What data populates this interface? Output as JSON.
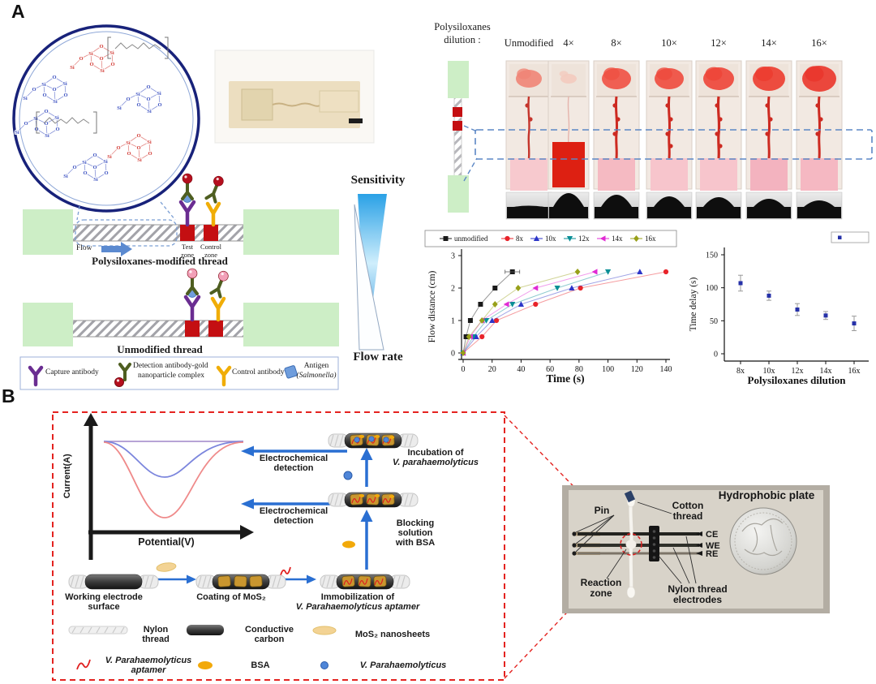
{
  "panel_a": {
    "label": "A",
    "molecule_atoms": {
      "si": "Si",
      "o": "O"
    },
    "flow_label": "Flow",
    "test_zone": [
      "Test",
      "zone"
    ],
    "control_zone": [
      "Control",
      "zone"
    ],
    "modified_thread_title": "Polysiloxanes-modified thread",
    "unmodified_thread_title": "Unmodified thread",
    "sensitivity_label": "Sensitivity",
    "flow_rate_label": "Flow rate",
    "antibody_legend": [
      {
        "icon": "capture-antibody-icon",
        "lines": [
          "Capture antibody"
        ]
      },
      {
        "icon": "detection-antibody-gold-icon",
        "lines": [
          "Detection antibody-gold",
          "nanoparticle complex"
        ]
      },
      {
        "icon": "control-antibody-icon",
        "lines": [
          "Control antibody"
        ]
      },
      {
        "icon": "antigen-icon",
        "lines": [
          "Antigen",
          "(Salmonella)"
        ]
      }
    ],
    "dilution_header": [
      "Polysiloxanes",
      "dilution :"
    ],
    "dilution_columns": [
      "Unmodified",
      "4×",
      "8×",
      "10×",
      "12×",
      "14×",
      "16×"
    ]
  },
  "chart_data": [
    {
      "type": "line",
      "title": "",
      "xlabel": "Time (s)",
      "ylabel": "Flow distance (cm)",
      "xlim": [
        0,
        140
      ],
      "ylim": [
        0,
        3
      ],
      "xticks": [
        0,
        20,
        40,
        60,
        80,
        100,
        120,
        140
      ],
      "yticks": [
        0,
        1,
        2,
        3
      ],
      "grid": false,
      "legend_position": "top",
      "y_common": [
        0,
        0.5,
        1.0,
        1.5,
        2.0,
        2.5
      ],
      "series": [
        {
          "name": "unmodified",
          "marker": "square",
          "color": "#1a1a1a",
          "x": [
            0,
            2,
            5,
            12,
            22,
            34
          ]
        },
        {
          "name": "8x",
          "marker": "circle",
          "color": "#e8232a",
          "x": [
            0,
            13,
            23,
            50,
            81,
            140
          ]
        },
        {
          "name": "10x",
          "marker": "triangle-up",
          "color": "#2c35c8",
          "x": [
            0,
            9,
            20,
            40,
            75,
            122
          ]
        },
        {
          "name": "12x",
          "marker": "triangle-down",
          "color": "#0a8f96",
          "x": [
            0,
            7,
            16,
            34,
            65,
            100
          ]
        },
        {
          "name": "14x",
          "marker": "triangle-left",
          "color": "#e12ad4",
          "x": [
            0,
            5,
            13,
            30,
            50,
            91
          ]
        },
        {
          "name": "16x",
          "marker": "diamond",
          "color": "#98a019",
          "x": [
            0,
            4,
            13,
            22,
            38,
            79
          ]
        }
      ]
    },
    {
      "type": "scatter",
      "title": "",
      "xlabel": "Polysiloxanes dilution",
      "ylabel": "Time delay (s)",
      "categories": [
        "8x",
        "10x",
        "12x",
        "14x",
        "16x"
      ],
      "values": [
        107,
        88,
        67,
        58,
        46
      ],
      "errors": [
        12,
        7,
        9,
        6,
        11
      ],
      "ylim": [
        0,
        150
      ],
      "yticks": [
        0,
        50,
        100,
        150
      ],
      "grid": false,
      "marker_color": "#2631a8"
    }
  ],
  "panel_b": {
    "label": "B",
    "cv_plot": {
      "ylabel": "Current(A)",
      "xlabel": "Potential(V)"
    },
    "detection_arrow_top": [
      "Electrochemical",
      "detection"
    ],
    "detection_arrow_bottom": [
      "Electrochemical",
      "detection"
    ],
    "incubation_step": [
      "Incubation of",
      "V. parahaemolyticus"
    ],
    "blocking_step": [
      "Blocking",
      "solution",
      "with BSA"
    ],
    "working_electrode_step": [
      "Working electrode",
      "surface"
    ],
    "coating_step": [
      "Coating of MoS₂"
    ],
    "immobilization_step": [
      "Immobilization of",
      "V. Parahaemolyticus aptamer"
    ],
    "component_legend": [
      {
        "icon": "nylon-thread-icon",
        "lines": [
          "Nylon",
          "thread"
        ]
      },
      {
        "icon": "conductive-carbon-icon",
        "lines": [
          "Conductive",
          "carbon"
        ]
      },
      {
        "icon": "mos2-nanosheets-icon",
        "lines": [
          "MoS₂ nanosheets"
        ]
      },
      {
        "icon": "aptamer-icon",
        "lines": [
          "V. Parahaemolyticus",
          "aptamer"
        ]
      },
      {
        "icon": "bsa-icon",
        "lines": [
          "BSA"
        ]
      },
      {
        "icon": "bacteria-icon",
        "lines": [
          "V. Parahaemolyticus"
        ]
      }
    ],
    "photo_labels": {
      "hydrophobic_plate": "Hydrophobic plate",
      "pin": "Pin",
      "cotton_thread": [
        "Cotton",
        "thread"
      ],
      "ce": "CE",
      "we": "WE",
      "re": "RE",
      "reaction_zone": [
        "Reaction",
        "zone"
      ],
      "nylon_thread_electrodes": [
        "Nylon thread",
        "electrodes"
      ]
    }
  },
  "colors": {
    "pad_green": "#cdeec6",
    "zone_red": "#c40f12",
    "arrow_blue": "#2a6fd2",
    "dashed_blue": "#5b87c5",
    "dashed_red": "#e42320",
    "sensitivity_blue": "#0f86d9",
    "time_delay_marker": "#2631a8"
  }
}
